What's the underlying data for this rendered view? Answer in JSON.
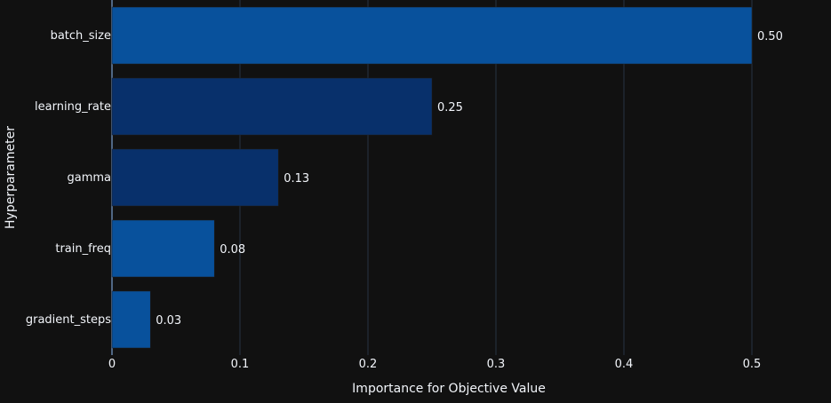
{
  "chart_data": {
    "type": "bar",
    "orientation": "horizontal",
    "xlabel": "Importance for Objective Value",
    "ylabel": "Hyperparameter",
    "categories": [
      "batch_size",
      "learning_rate",
      "gamma",
      "train_freq",
      "gradient_steps"
    ],
    "values": [
      0.5,
      0.25,
      0.13,
      0.08,
      0.03
    ],
    "value_labels": [
      "0.50",
      "0.25",
      "0.13",
      "0.08",
      "0.03"
    ],
    "bar_colors": [
      "#08519c",
      "#08306b",
      "#08306b",
      "#08519c",
      "#08519c"
    ],
    "xlim": [
      0,
      0.55
    ],
    "x_ticks": [
      0,
      0.1,
      0.2,
      0.3,
      0.4,
      0.5
    ],
    "x_tick_labels": [
      "0",
      "0.1",
      "0.2",
      "0.3",
      "0.4",
      "0.5"
    ],
    "grid": "vertical",
    "background_color": "#111111",
    "grid_color": "#283442",
    "text_color": "#f2f5fa"
  }
}
